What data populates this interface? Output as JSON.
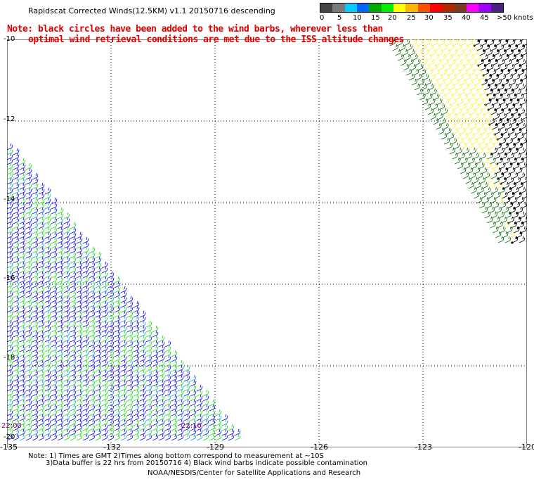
{
  "header": {
    "title": "Rapidscat Corrected Winds(12.5KM) v1.1 20150716 descending",
    "note_line1": "Note: black circles have been added to the wind barbs, wherever less than",
    "note_line2": "optimal wind retrieval conditions are met due to the ISS altitude changes"
  },
  "legend": {
    "colors": [
      "#444444",
      "#7a7a7a",
      "#00ccff",
      "#0066ff",
      "#00aa00",
      "#00ee00",
      "#ffff00",
      "#ffb400",
      "#ff5000",
      "#ff0000",
      "#b42800",
      "#7a3c1e",
      "#ff00ff",
      "#a000ff",
      "#4a2080"
    ],
    "labels": [
      "0",
      "5",
      "10",
      "15",
      "20",
      "25",
      "30",
      "35",
      "40",
      "45",
      ">50 knots"
    ]
  },
  "map": {
    "lat_labels": [
      "-10",
      "-12",
      "-14",
      "-16",
      "-18",
      "-20"
    ],
    "lon_labels": [
      "-135",
      "-132",
      "-129",
      "-126",
      "-123",
      "-120"
    ],
    "time_labels": [
      "22:03",
      "22:10"
    ],
    "lon_range": [
      -135,
      -120
    ],
    "lat_range": [
      -10,
      -20
    ],
    "swath_colors": {
      "west_blue": "#1010ff",
      "west_green": "#20dd20",
      "west_cyan": "#20a0d0",
      "east_yellow": "#ffee44",
      "east_green": "#107010",
      "east_black": "#000000"
    }
  },
  "footer": {
    "line1": "Note: 1) Times are GMT 2)Times along bottom correspond to measurement at ~10S",
    "line2": "3)Data buffer is 22 hrs from 20150716 4) Black wind barbs indicate possible contamination",
    "line3": "NOAA/NESDIS/Center for Satellite Applications and Research"
  }
}
